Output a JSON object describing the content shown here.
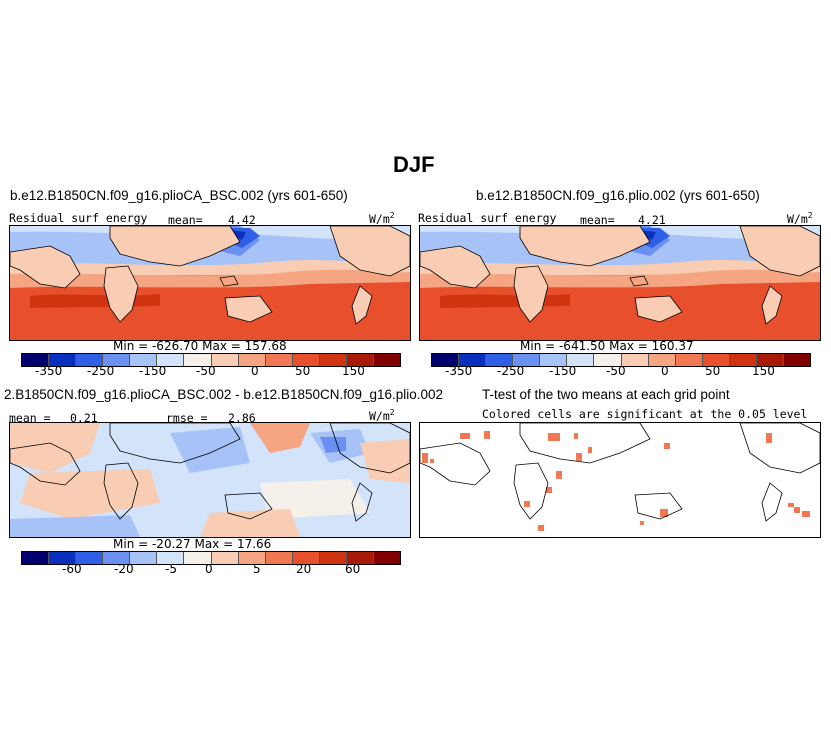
{
  "figure": {
    "season": "DJF",
    "panels": {
      "p1": {
        "title": "b.e12.B1850CN.f09_g16.plioCA_BSC.002 (yrs 601-650)",
        "variable": "Residual surf energy",
        "mean_label": "mean=",
        "mean": "4.42",
        "units": "W/m",
        "units_sup": "2",
        "minmax": "Min = -626.70 Max = 157.68"
      },
      "p2": {
        "title": "b.e12.B1850CN.f09_g16.plio.002 (yrs 601-650)",
        "variable": "Residual surf energy",
        "mean_label": "mean=",
        "mean": "4.21",
        "units": "W/m",
        "units_sup": "2",
        "minmax": "Min = -641.50 Max = 160.37"
      },
      "p3": {
        "title": "2.B1850CN.f09_g16.plioCA_BSC.002 - b.e12.B1850CN.f09_g16.plio.002",
        "mean_label": "mean =",
        "mean": "0.21",
        "rmse_label": "rmse =",
        "rmse": "2.86",
        "units": "W/m",
        "units_sup": "2",
        "minmax": "Min = -20.27 Max =  17.66"
      },
      "p4": {
        "title": "T-test of the two means at each grid point",
        "subtitle": "Colored cells are significant at the 0.05 level"
      }
    },
    "colorbar_colors": [
      "#02006e",
      "#0a2fbf",
      "#2e5fe6",
      "#6a90f2",
      "#a6c2f7",
      "#d2e3fa",
      "#f6f0ea",
      "#f8cdb3",
      "#f5a582",
      "#f07852",
      "#e8502d",
      "#d0330f",
      "#a91908",
      "#800000"
    ]
  },
  "chart_data": [
    {
      "type": "heatmap",
      "title": "b.e12.B1850CN.f09_g16.plioCA_BSC.002 (yrs 601-650)",
      "variable": "Residual surf energy",
      "units": "W/m2",
      "mean": 4.42,
      "min": -626.7,
      "max": 157.68,
      "colorbar_ticks": [
        "-350",
        "-250",
        "-150",
        "-50",
        "0",
        "50",
        "150"
      ]
    },
    {
      "type": "heatmap",
      "title": "b.e12.B1850CN.f09_g16.plio.002 (yrs 601-650)",
      "variable": "Residual surf energy",
      "units": "W/m2",
      "mean": 4.21,
      "min": -641.5,
      "max": 160.37,
      "colorbar_ticks": [
        "-350",
        "-250",
        "-150",
        "-50",
        "0",
        "50",
        "150"
      ]
    },
    {
      "type": "heatmap",
      "title": "2.B1850CN.f09_g16.plioCA_BSC.002 - b.e12.B1850CN.f09_g16.plio.002",
      "units": "W/m2",
      "mean": 0.21,
      "rmse": 2.86,
      "min": -20.27,
      "max": 17.66,
      "colorbar_ticks": [
        "-60",
        "-20",
        "-5",
        "0",
        "5",
        "20",
        "60"
      ]
    },
    {
      "type": "heatmap",
      "title": "T-test of the two means at each grid point",
      "subtitle": "Colored cells are significant at the 0.05 level"
    }
  ]
}
